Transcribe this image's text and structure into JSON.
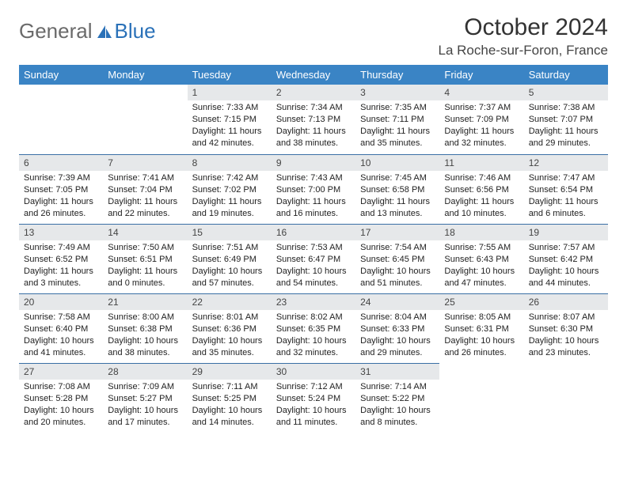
{
  "brand": {
    "part1": "General",
    "part2": "Blue"
  },
  "title": "October 2024",
  "subtitle": "La Roche-sur-Foron, France",
  "colors": {
    "header_bg": "#3a84c5",
    "header_text": "#ffffff",
    "daynum_bg": "#e6e8ea",
    "day_border": "#3a6fa5",
    "brand_gray": "#6a6a6a",
    "brand_blue": "#2a71b8",
    "page_bg": "#ffffff"
  },
  "typography": {
    "title_fontsize": 30,
    "subtitle_fontsize": 17,
    "header_fontsize": 13,
    "daynum_fontsize": 12,
    "cell_fontsize": 11
  },
  "weekdays": [
    "Sunday",
    "Monday",
    "Tuesday",
    "Wednesday",
    "Thursday",
    "Friday",
    "Saturday"
  ],
  "weeks": [
    [
      {
        "n": "",
        "sunrise": "",
        "sunset": "",
        "daylight": "",
        "empty": true
      },
      {
        "n": "",
        "sunrise": "",
        "sunset": "",
        "daylight": "",
        "empty": true
      },
      {
        "n": "1",
        "sunrise": "Sunrise: 7:33 AM",
        "sunset": "Sunset: 7:15 PM",
        "daylight": "Daylight: 11 hours and 42 minutes."
      },
      {
        "n": "2",
        "sunrise": "Sunrise: 7:34 AM",
        "sunset": "Sunset: 7:13 PM",
        "daylight": "Daylight: 11 hours and 38 minutes."
      },
      {
        "n": "3",
        "sunrise": "Sunrise: 7:35 AM",
        "sunset": "Sunset: 7:11 PM",
        "daylight": "Daylight: 11 hours and 35 minutes."
      },
      {
        "n": "4",
        "sunrise": "Sunrise: 7:37 AM",
        "sunset": "Sunset: 7:09 PM",
        "daylight": "Daylight: 11 hours and 32 minutes."
      },
      {
        "n": "5",
        "sunrise": "Sunrise: 7:38 AM",
        "sunset": "Sunset: 7:07 PM",
        "daylight": "Daylight: 11 hours and 29 minutes."
      }
    ],
    [
      {
        "n": "6",
        "sunrise": "Sunrise: 7:39 AM",
        "sunset": "Sunset: 7:05 PM",
        "daylight": "Daylight: 11 hours and 26 minutes."
      },
      {
        "n": "7",
        "sunrise": "Sunrise: 7:41 AM",
        "sunset": "Sunset: 7:04 PM",
        "daylight": "Daylight: 11 hours and 22 minutes."
      },
      {
        "n": "8",
        "sunrise": "Sunrise: 7:42 AM",
        "sunset": "Sunset: 7:02 PM",
        "daylight": "Daylight: 11 hours and 19 minutes."
      },
      {
        "n": "9",
        "sunrise": "Sunrise: 7:43 AM",
        "sunset": "Sunset: 7:00 PM",
        "daylight": "Daylight: 11 hours and 16 minutes."
      },
      {
        "n": "10",
        "sunrise": "Sunrise: 7:45 AM",
        "sunset": "Sunset: 6:58 PM",
        "daylight": "Daylight: 11 hours and 13 minutes."
      },
      {
        "n": "11",
        "sunrise": "Sunrise: 7:46 AM",
        "sunset": "Sunset: 6:56 PM",
        "daylight": "Daylight: 11 hours and 10 minutes."
      },
      {
        "n": "12",
        "sunrise": "Sunrise: 7:47 AM",
        "sunset": "Sunset: 6:54 PM",
        "daylight": "Daylight: 11 hours and 6 minutes."
      }
    ],
    [
      {
        "n": "13",
        "sunrise": "Sunrise: 7:49 AM",
        "sunset": "Sunset: 6:52 PM",
        "daylight": "Daylight: 11 hours and 3 minutes."
      },
      {
        "n": "14",
        "sunrise": "Sunrise: 7:50 AM",
        "sunset": "Sunset: 6:51 PM",
        "daylight": "Daylight: 11 hours and 0 minutes."
      },
      {
        "n": "15",
        "sunrise": "Sunrise: 7:51 AM",
        "sunset": "Sunset: 6:49 PM",
        "daylight": "Daylight: 10 hours and 57 minutes."
      },
      {
        "n": "16",
        "sunrise": "Sunrise: 7:53 AM",
        "sunset": "Sunset: 6:47 PM",
        "daylight": "Daylight: 10 hours and 54 minutes."
      },
      {
        "n": "17",
        "sunrise": "Sunrise: 7:54 AM",
        "sunset": "Sunset: 6:45 PM",
        "daylight": "Daylight: 10 hours and 51 minutes."
      },
      {
        "n": "18",
        "sunrise": "Sunrise: 7:55 AM",
        "sunset": "Sunset: 6:43 PM",
        "daylight": "Daylight: 10 hours and 47 minutes."
      },
      {
        "n": "19",
        "sunrise": "Sunrise: 7:57 AM",
        "sunset": "Sunset: 6:42 PM",
        "daylight": "Daylight: 10 hours and 44 minutes."
      }
    ],
    [
      {
        "n": "20",
        "sunrise": "Sunrise: 7:58 AM",
        "sunset": "Sunset: 6:40 PM",
        "daylight": "Daylight: 10 hours and 41 minutes."
      },
      {
        "n": "21",
        "sunrise": "Sunrise: 8:00 AM",
        "sunset": "Sunset: 6:38 PM",
        "daylight": "Daylight: 10 hours and 38 minutes."
      },
      {
        "n": "22",
        "sunrise": "Sunrise: 8:01 AM",
        "sunset": "Sunset: 6:36 PM",
        "daylight": "Daylight: 10 hours and 35 minutes."
      },
      {
        "n": "23",
        "sunrise": "Sunrise: 8:02 AM",
        "sunset": "Sunset: 6:35 PM",
        "daylight": "Daylight: 10 hours and 32 minutes."
      },
      {
        "n": "24",
        "sunrise": "Sunrise: 8:04 AM",
        "sunset": "Sunset: 6:33 PM",
        "daylight": "Daylight: 10 hours and 29 minutes."
      },
      {
        "n": "25",
        "sunrise": "Sunrise: 8:05 AM",
        "sunset": "Sunset: 6:31 PM",
        "daylight": "Daylight: 10 hours and 26 minutes."
      },
      {
        "n": "26",
        "sunrise": "Sunrise: 8:07 AM",
        "sunset": "Sunset: 6:30 PM",
        "daylight": "Daylight: 10 hours and 23 minutes."
      }
    ],
    [
      {
        "n": "27",
        "sunrise": "Sunrise: 7:08 AM",
        "sunset": "Sunset: 5:28 PM",
        "daylight": "Daylight: 10 hours and 20 minutes."
      },
      {
        "n": "28",
        "sunrise": "Sunrise: 7:09 AM",
        "sunset": "Sunset: 5:27 PM",
        "daylight": "Daylight: 10 hours and 17 minutes."
      },
      {
        "n": "29",
        "sunrise": "Sunrise: 7:11 AM",
        "sunset": "Sunset: 5:25 PM",
        "daylight": "Daylight: 10 hours and 14 minutes."
      },
      {
        "n": "30",
        "sunrise": "Sunrise: 7:12 AM",
        "sunset": "Sunset: 5:24 PM",
        "daylight": "Daylight: 10 hours and 11 minutes."
      },
      {
        "n": "31",
        "sunrise": "Sunrise: 7:14 AM",
        "sunset": "Sunset: 5:22 PM",
        "daylight": "Daylight: 10 hours and 8 minutes."
      },
      {
        "n": "",
        "sunrise": "",
        "sunset": "",
        "daylight": "",
        "empty": true
      },
      {
        "n": "",
        "sunrise": "",
        "sunset": "",
        "daylight": "",
        "empty": true
      }
    ]
  ]
}
